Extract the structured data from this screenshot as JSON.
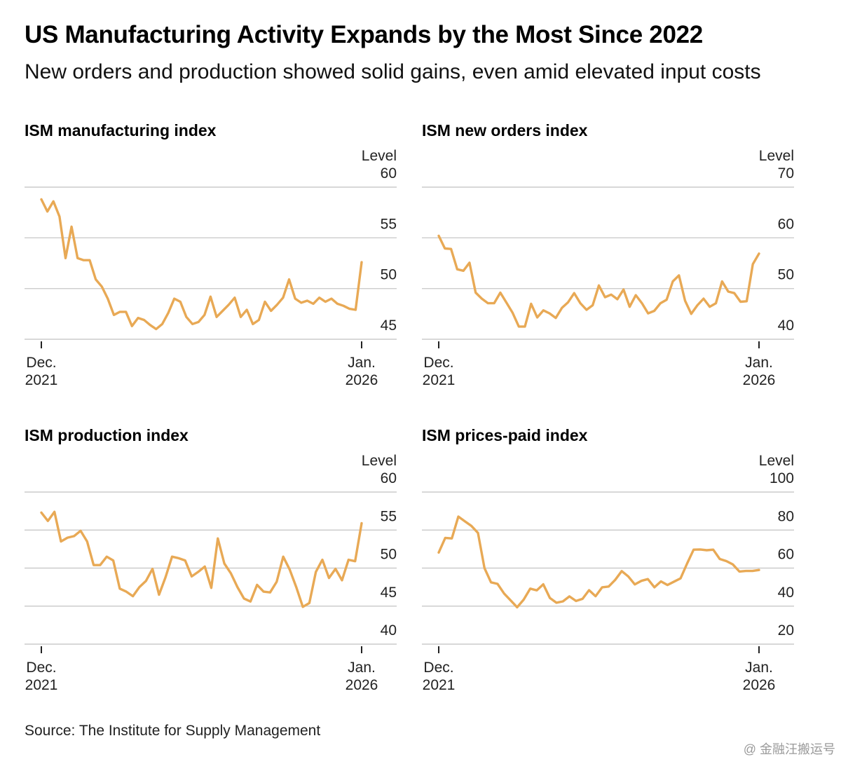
{
  "title": "US Manufacturing Activity Expands by the Most Since 2022",
  "subtitle": "New orders and production showed solid gains, even amid elevated input costs",
  "source": "Source: The Institute for Supply Management",
  "watermark": "@ 金融汪搬运号",
  "colors": {
    "line": "#E8A955",
    "grid": "#cccccc",
    "text": "#222222"
  },
  "chart_data": [
    {
      "type": "line",
      "title": "ISM manufacturing index",
      "unit_label": "Level",
      "ylim": [
        45,
        60
      ],
      "yticks": [
        "60",
        "55",
        "50",
        "45"
      ],
      "yticks_values": [
        60,
        55,
        50,
        45
      ],
      "xtick_labels": [
        [
          "Dec.",
          "2021"
        ],
        [
          "Jan.",
          "2026"
        ]
      ],
      "x_range": [
        "2021-12",
        "2026-01"
      ],
      "grid": true,
      "series": [
        {
          "values": [
            58.8,
            57.6,
            58.6,
            57.1,
            53.0,
            56.1,
            53.0,
            52.8,
            52.8,
            50.9,
            50.2,
            49.0,
            47.4,
            47.7,
            47.7,
            46.3,
            47.1,
            46.9,
            46.4,
            46.0,
            46.5,
            47.6,
            49.0,
            48.7,
            47.2,
            46.5,
            46.7,
            47.4,
            49.2,
            47.2,
            47.8,
            48.4,
            49.1,
            47.2,
            47.9,
            46.5,
            46.9,
            48.7,
            47.8,
            48.4,
            49.1,
            50.9,
            49.0,
            48.6,
            48.8,
            48.5,
            49.1,
            48.7,
            49.0,
            48.5,
            48.3,
            48.0,
            47.9,
            52.6
          ]
        }
      ]
    },
    {
      "type": "line",
      "title": "ISM new orders index",
      "unit_label": "Level",
      "ylim": [
        40,
        70
      ],
      "yticks": [
        "70",
        "60",
        "50",
        "40"
      ],
      "yticks_values": [
        70,
        60,
        50,
        40
      ],
      "xtick_labels": [
        [
          "Dec.",
          "2021"
        ],
        [
          "Jan.",
          "2026"
        ]
      ],
      "x_range": [
        "2021-12",
        "2026-01"
      ],
      "grid": true,
      "series": [
        {
          "values": [
            60.4,
            57.9,
            57.8,
            53.8,
            53.5,
            55.1,
            49.2,
            48.0,
            47.1,
            47.1,
            49.2,
            47.2,
            45.2,
            42.5,
            42.5,
            47.0,
            44.3,
            45.7,
            45.1,
            44.2,
            46.2,
            47.3,
            49.1,
            47.1,
            45.8,
            46.7,
            50.6,
            48.3,
            48.8,
            47.9,
            49.8,
            46.4,
            48.7,
            47.1,
            45.1,
            45.6,
            47.1,
            47.8,
            51.4,
            52.6,
            47.6,
            45.0,
            46.7,
            48.0,
            46.4,
            47.1,
            51.4,
            49.4,
            49.1,
            47.4,
            47.5,
            54.8,
            56.9
          ]
        }
      ]
    },
    {
      "type": "line",
      "title": "ISM production index",
      "unit_label": "Level",
      "ylim": [
        40,
        60
      ],
      "yticks": [
        "60",
        "55",
        "50",
        "45",
        "40"
      ],
      "yticks_values": [
        60,
        55,
        50,
        45,
        40
      ],
      "xtick_labels": [
        [
          "Dec.",
          "2021"
        ],
        [
          "Jan.",
          "2026"
        ]
      ],
      "x_range": [
        "2021-12",
        "2026-01"
      ],
      "grid": true,
      "series": [
        {
          "values": [
            57.3,
            56.2,
            57.4,
            53.5,
            54.0,
            54.2,
            54.9,
            53.5,
            50.4,
            50.4,
            51.5,
            51.0,
            47.3,
            46.9,
            46.3,
            47.5,
            48.3,
            49.9,
            46.5,
            48.8,
            51.5,
            51.3,
            51.0,
            48.9,
            49.5,
            50.2,
            47.4,
            53.9,
            50.6,
            49.3,
            47.5,
            46.0,
            45.6,
            47.8,
            46.9,
            46.8,
            48.2,
            51.5,
            49.8,
            47.5,
            44.9,
            45.4,
            49.5,
            51.1,
            48.7,
            49.9,
            48.4,
            51.1,
            50.9,
            55.9
          ]
        }
      ]
    },
    {
      "type": "line",
      "title": "ISM prices-paid index",
      "unit_label": "Level",
      "ylim": [
        20,
        100
      ],
      "yticks": [
        "100",
        "80",
        "60",
        "40",
        "20"
      ],
      "yticks_values": [
        100,
        80,
        60,
        40,
        20
      ],
      "xtick_labels": [
        [
          "Dec.",
          "2021"
        ],
        [
          "Jan.",
          "2026"
        ]
      ],
      "x_range": [
        "2021-12",
        "2026-01"
      ],
      "grid": true,
      "series": [
        {
          "values": [
            68.2,
            75.9,
            75.6,
            87.1,
            84.6,
            82.2,
            78.5,
            60.0,
            52.5,
            51.7,
            46.6,
            43.0,
            39.4,
            43.4,
            49.2,
            48.3,
            51.5,
            44.3,
            41.8,
            42.5,
            45.1,
            42.7,
            43.8,
            48.4,
            45.2,
            49.9,
            50.3,
            53.8,
            58.4,
            55.6,
            51.4,
            53.3,
            54.2,
            49.9,
            53.0,
            51.1,
            52.9,
            54.6,
            62.4,
            69.7,
            69.8,
            69.4,
            69.7,
            64.8,
            63.7,
            61.9,
            58.2,
            58.5,
            58.5,
            59.0
          ]
        }
      ]
    }
  ]
}
